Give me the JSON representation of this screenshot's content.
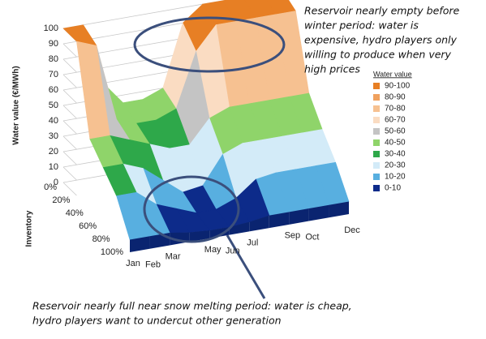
{
  "chart_data": {
    "type": "surface3d",
    "zlabel": "Water value (€/MWh)",
    "ylabel": "Inventory",
    "categories": [
      "Jan",
      "Feb",
      "Mar",
      null,
      "May",
      "Jun",
      "Jul",
      null,
      "Sep",
      "Oct",
      null,
      "Dec"
    ],
    "inventory": [
      "0%",
      "20%",
      "40%",
      "60%",
      "80%",
      "100%"
    ],
    "zlim": [
      0,
      100
    ],
    "zticks": [
      0,
      10,
      20,
      30,
      40,
      50,
      60,
      70,
      80,
      90,
      100
    ],
    "values": [
      [
        100,
        100,
        60,
        45,
        45,
        50,
        90,
        100,
        100,
        100,
        100,
        100
      ],
      [
        100,
        95,
        45,
        40,
        40,
        45,
        80,
        95,
        95,
        95,
        95,
        95
      ],
      [
        45,
        45,
        40,
        35,
        30,
        30,
        45,
        50,
        50,
        50,
        50,
        50
      ],
      [
        35,
        35,
        30,
        20,
        10,
        12,
        30,
        35,
        35,
        35,
        35,
        35
      ],
      [
        25,
        25,
        15,
        10,
        5,
        5,
        10,
        20,
        22,
        22,
        22,
        22
      ],
      [
        5,
        5,
        5,
        3,
        2,
        2,
        3,
        5,
        5,
        5,
        5,
        5
      ]
    ],
    "legend": {
      "title": "Water value",
      "entries": [
        {
          "label": "90-100",
          "min": 90,
          "max": 100,
          "color": "#e77f24"
        },
        {
          "label": "80-90",
          "min": 80,
          "max": 90,
          "color": "#f0a15e"
        },
        {
          "label": "70-80",
          "min": 70,
          "max": 80,
          "color": "#f6c191"
        },
        {
          "label": "60-70",
          "min": 60,
          "max": 70,
          "color": "#fadcc2"
        },
        {
          "label": "50-60",
          "min": 50,
          "max": 60,
          "color": "#c4c4c4"
        },
        {
          "label": "40-50",
          "min": 40,
          "max": 50,
          "color": "#8fd46a"
        },
        {
          "label": "30-40",
          "min": 30,
          "max": 40,
          "color": "#2ea84a"
        },
        {
          "label": "20-30",
          "min": 20,
          "max": 30,
          "color": "#d3ebf8"
        },
        {
          "label": "10-20",
          "min": 10,
          "max": 20,
          "color": "#58afe0"
        },
        {
          "label": "0-10",
          "min": 0,
          "max": 10,
          "color": "#0d2b8a"
        }
      ]
    },
    "annotations": [
      [
        "Reservoir nearly empty before",
        "winter period: water is",
        "expensive, hydro players only",
        "willing to produce when very",
        "high prices"
      ],
      [
        "Reservoir nearly full near snow melting period: water is cheap,",
        "hydro players want to undercut other generation"
      ]
    ]
  }
}
